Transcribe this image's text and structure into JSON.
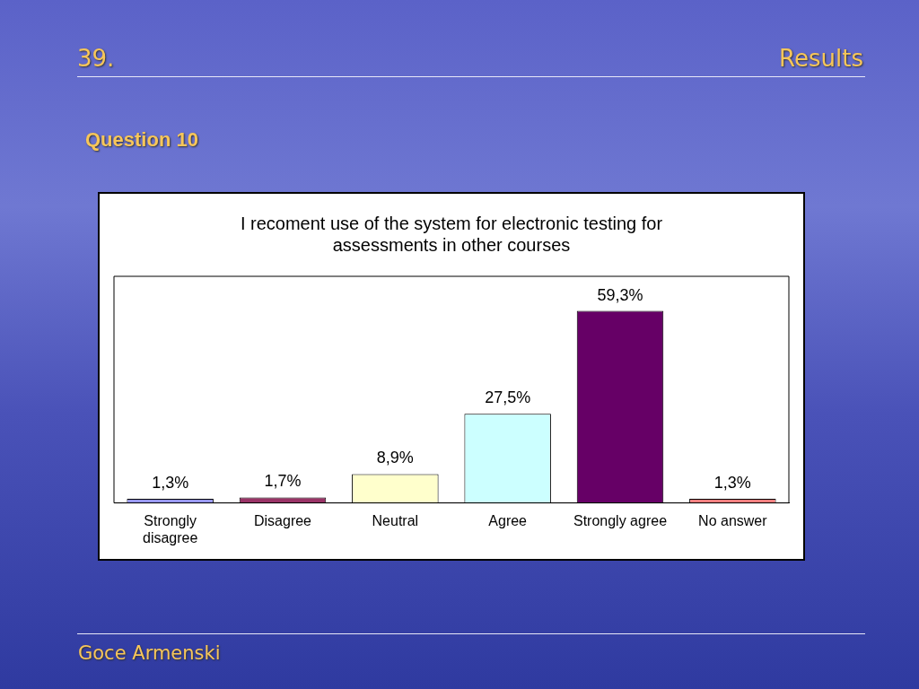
{
  "chart_data": {
    "type": "bar",
    "title": "I recoment use of the system for electronic testing for assessments in other courses",
    "categories": [
      "Strongly disagree",
      "Disagree",
      "Neutral",
      "Agree",
      "Strongly agree",
      "No answer"
    ],
    "values": [
      1.3,
      1.7,
      8.9,
      27.5,
      59.3,
      1.3
    ],
    "colors": [
      "#9999ff",
      "#993366",
      "#ffffcc",
      "#ccffff",
      "#660066",
      "#ff8080"
    ],
    "value_labels": [
      "1,3%",
      "1,7%",
      "8,9%",
      "27,5%",
      "59,3%",
      "1,3%"
    ],
    "annotations": [
      "39.",
      "Results",
      "Question 10",
      "Goce Armenski"
    ],
    "grid": false,
    "legend": false
  }
}
